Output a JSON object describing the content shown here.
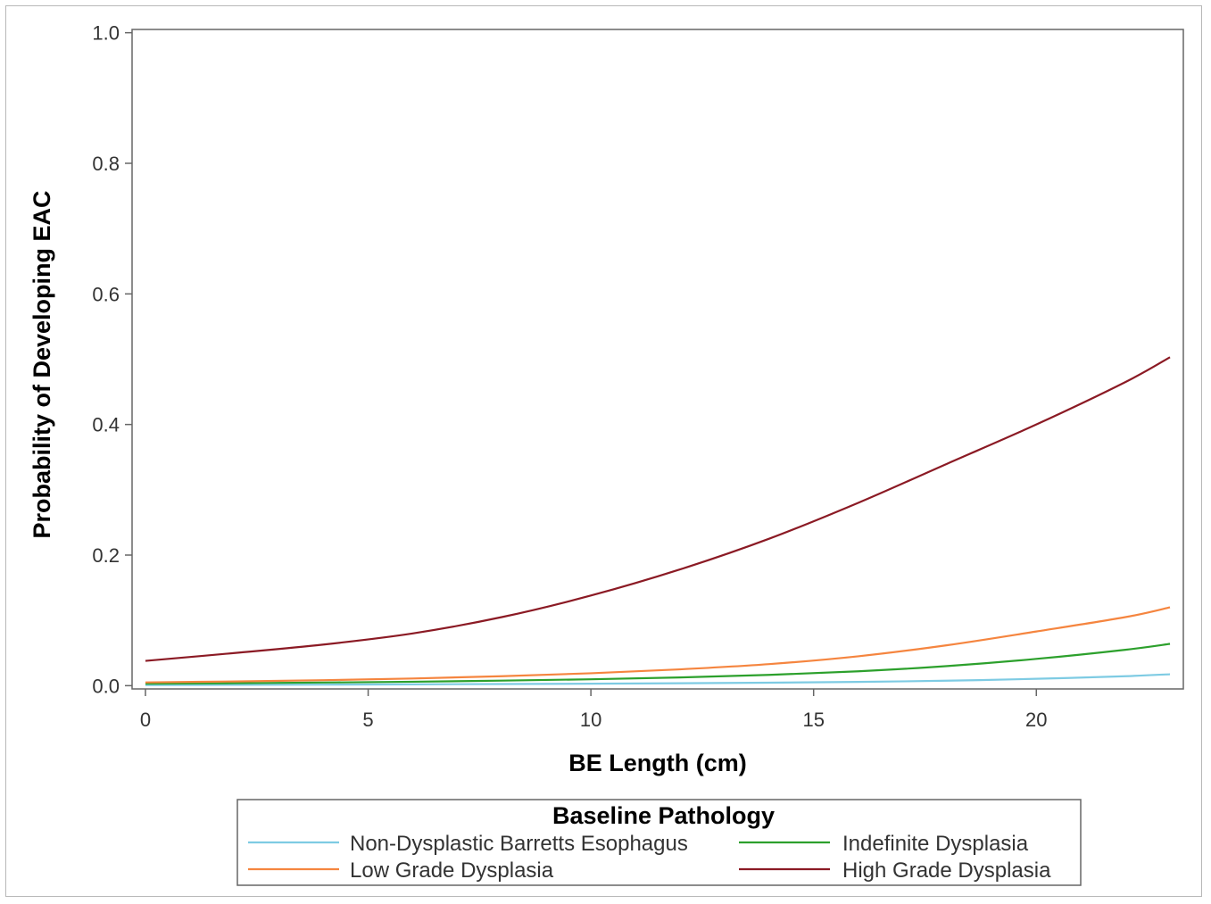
{
  "chart_data": {
    "type": "line",
    "xlabel": "BE Length (cm)",
    "ylabel": "Probability of Developing EAC",
    "xlim": [
      -0.3,
      23.3
    ],
    "ylim": [
      -0.005,
      1.005
    ],
    "xticks": [
      0,
      5,
      10,
      15,
      20
    ],
    "xtick_labels": [
      "0",
      "5",
      "10",
      "15",
      "20"
    ],
    "yticks": [
      0.0,
      0.2,
      0.4,
      0.6,
      0.8,
      1.0
    ],
    "ytick_labels": [
      "0.0",
      "0.2",
      "0.4",
      "0.6",
      "0.8",
      "1.0"
    ],
    "grid": false,
    "legend": {
      "title": "Baseline Pathology",
      "placement": "bottom"
    },
    "x": [
      0,
      2,
      4,
      6,
      8,
      10,
      12,
      14,
      16,
      18,
      20,
      22,
      23
    ],
    "series": [
      {
        "name": "Non-Dysplastic Barretts Esophagus",
        "color": "#7ecbe3",
        "values": [
          0.001,
          0.0013,
          0.0016,
          0.002,
          0.0025,
          0.003,
          0.0037,
          0.0046,
          0.0058,
          0.0076,
          0.0105,
          0.0145,
          0.0175
        ]
      },
      {
        "name": "Indefinite Dysplasia",
        "color": "#2ca02c",
        "values": [
          0.003,
          0.0038,
          0.0048,
          0.006,
          0.0077,
          0.0098,
          0.0126,
          0.0165,
          0.022,
          0.03,
          0.041,
          0.055,
          0.064
        ]
      },
      {
        "name": "Low Grade Dysplasia",
        "color": "#f5853f",
        "values": [
          0.005,
          0.0065,
          0.0084,
          0.011,
          0.0145,
          0.019,
          0.025,
          0.033,
          0.045,
          0.062,
          0.083,
          0.105,
          0.12
        ]
      },
      {
        "name": "High Grade Dysplasia",
        "color": "#8b1a24",
        "values": [
          0.038,
          0.05,
          0.063,
          0.08,
          0.105,
          0.138,
          0.178,
          0.225,
          0.28,
          0.34,
          0.4,
          0.465,
          0.503
        ]
      }
    ]
  }
}
